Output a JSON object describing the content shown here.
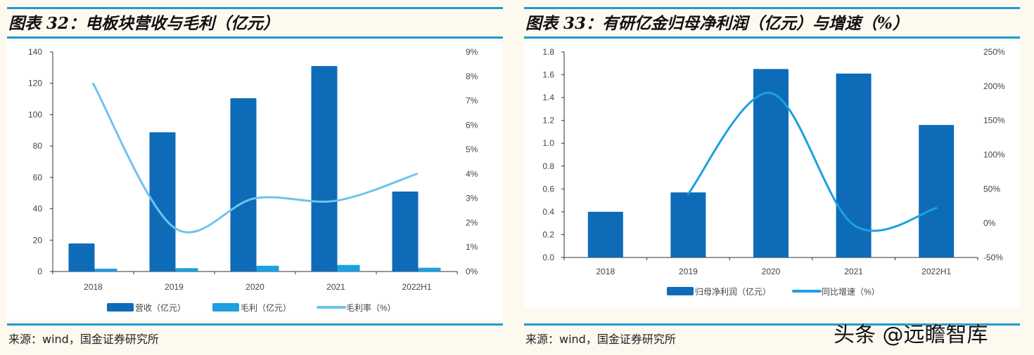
{
  "left": {
    "title": "图表 32：电板块营收与毛利（亿元）",
    "source": "来源：wind，国金证券研究所"
  },
  "right": {
    "title": "图表 33：有研亿金归母净利润（亿元）与增速（%）",
    "source": "来源：wind，国金证券研究所"
  },
  "watermark": "头条 @远瞻智库",
  "chart_data": [
    {
      "type": "bar",
      "categories": [
        "2018",
        "2019",
        "2020",
        "2021",
        "2022H1"
      ],
      "series": [
        {
          "name": "营收（亿元）",
          "type": "bar",
          "axis": "left",
          "color": "#0e6bb8",
          "values": [
            17.9,
            88.8,
            110.5,
            131.0,
            51.0
          ]
        },
        {
          "name": "毛利（亿元）",
          "type": "bar",
          "axis": "left",
          "color": "#1ca0e0",
          "values": [
            1.8,
            2.1,
            3.7,
            4.2,
            2.4
          ]
        },
        {
          "name": "毛利率（%）",
          "type": "line",
          "axis": "right",
          "color": "#6ec3ef",
          "values": [
            7.7,
            1.8,
            3.0,
            2.9,
            4.0
          ]
        }
      ],
      "left_axis": {
        "min": 0,
        "max": 140,
        "ticks": [
          "0",
          "20",
          "40",
          "60",
          "80",
          "100",
          "120",
          "140"
        ]
      },
      "right_axis": {
        "min": 0,
        "max": 9,
        "ticks": [
          "0%",
          "1%",
          "2%",
          "3%",
          "4%",
          "5%",
          "6%",
          "7%",
          "8%",
          "9%"
        ]
      },
      "legend": "bottom",
      "grid": false
    },
    {
      "type": "bar",
      "categories": [
        "2018",
        "2019",
        "2020",
        "2021",
        "2022H1"
      ],
      "series": [
        {
          "name": "归母净利润（亿元）",
          "type": "bar",
          "axis": "left",
          "color": "#0e6bb8",
          "values": [
            0.4,
            0.57,
            1.65,
            1.61,
            1.16
          ]
        },
        {
          "name": "同比增速（%）",
          "type": "line",
          "axis": "right",
          "color": "#1ca0e0",
          "values": [
            null,
            43,
            190,
            -2.4,
            22
          ]
        }
      ],
      "left_axis": {
        "min": 0,
        "max": 1.8,
        "ticks": [
          "0.0",
          "0.2",
          "0.4",
          "0.6",
          "0.8",
          "1.0",
          "1.2",
          "1.4",
          "1.6",
          "1.8"
        ]
      },
      "right_axis": {
        "min": -50,
        "max": 250,
        "ticks": [
          "-50%",
          "0%",
          "50%",
          "100%",
          "150%",
          "200%",
          "250%"
        ]
      },
      "legend": "bottom",
      "grid": false
    }
  ]
}
